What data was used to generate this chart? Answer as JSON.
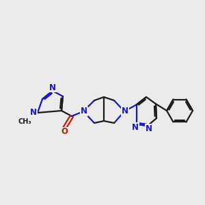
{
  "background_color": "#ebebeb",
  "bond_color": "#1a1a1a",
  "n_color": "#1515cc",
  "o_color": "#cc1500",
  "line_width": 1.6,
  "font_size": 8.5,
  "figsize": [
    3.0,
    3.0
  ],
  "dpi": 100,
  "xlim": [
    0,
    300
  ],
  "ylim": [
    0,
    300
  ]
}
